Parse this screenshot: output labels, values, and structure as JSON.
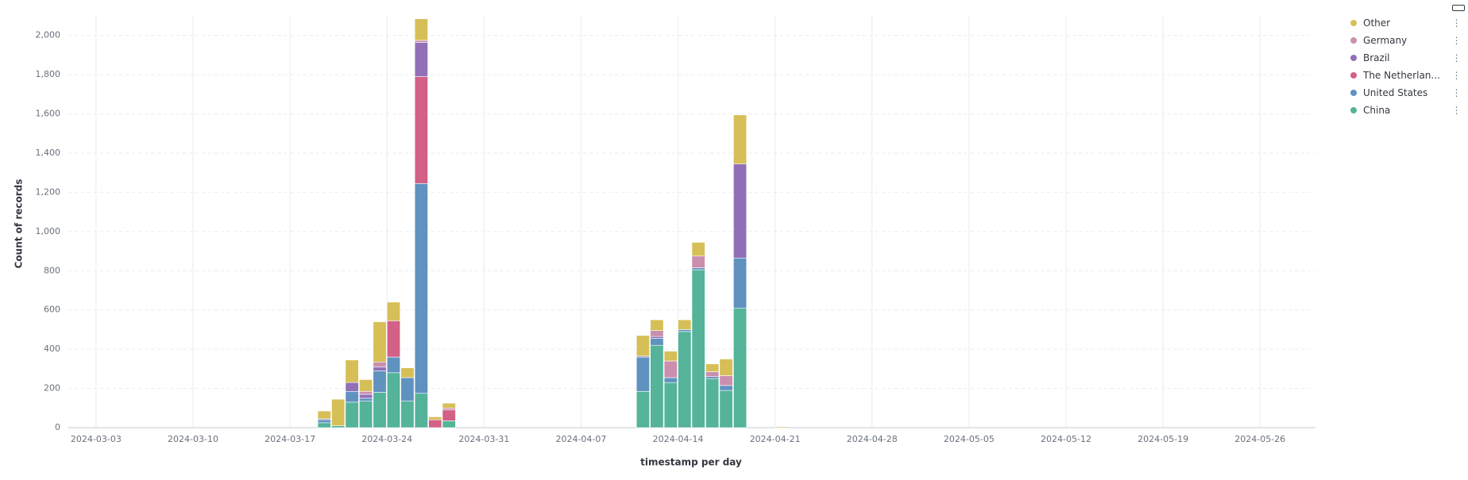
{
  "chart_data": {
    "type": "bar",
    "stacked": true,
    "x_label": "timestamp per day",
    "y_label": "Count of records",
    "x": [
      "2024-03-19",
      "2024-03-20",
      "2024-03-21",
      "2024-03-22",
      "2024-03-23",
      "2024-03-24",
      "2024-03-25",
      "2024-03-26",
      "2024-03-27",
      "2024-03-28",
      "2024-04-11",
      "2024-04-12",
      "2024-04-13",
      "2024-04-14",
      "2024-04-15",
      "2024-04-16",
      "2024-04-17",
      "2024-04-18",
      "2024-04-21"
    ],
    "series": [
      {
        "name": "China",
        "color": "#54b399",
        "values": [
          25,
          10,
          130,
          135,
          180,
          280,
          135,
          175,
          null,
          35,
          185,
          420,
          230,
          490,
          805,
          250,
          190,
          610,
          null
        ]
      },
      {
        "name": "United States",
        "color": "#6092c0",
        "values": [
          15,
          null,
          55,
          15,
          110,
          80,
          120,
          1070,
          null,
          null,
          175,
          35,
          25,
          10,
          10,
          10,
          25,
          255,
          null
        ]
      },
      {
        "name": "The Netherlan...",
        "color": "#d36086",
        "values": [
          null,
          null,
          null,
          null,
          null,
          185,
          null,
          545,
          40,
          55,
          null,
          null,
          null,
          null,
          null,
          null,
          null,
          null,
          null
        ]
      },
      {
        "name": "Brazil",
        "color": "#9170b8",
        "values": [
          5,
          null,
          45,
          20,
          20,
          null,
          null,
          175,
          null,
          null,
          5,
          10,
          null,
          null,
          null,
          null,
          null,
          480,
          null
        ]
      },
      {
        "name": "Germany",
        "color": "#ca8eae",
        "values": [
          null,
          null,
          null,
          15,
          25,
          null,
          null,
          10,
          null,
          10,
          null,
          30,
          85,
          null,
          60,
          25,
          50,
          null,
          null
        ]
      },
      {
        "name": "Other",
        "color": "#d6bf57",
        "values": [
          40,
          135,
          115,
          60,
          205,
          95,
          50,
          110,
          15,
          25,
          105,
          55,
          50,
          50,
          70,
          40,
          85,
          250,
          5
        ]
      }
    ],
    "xlim": [
      "2024-03-01",
      "2024-05-30"
    ],
    "xticks": [
      "2024-03-03",
      "2024-03-10",
      "2024-03-17",
      "2024-03-24",
      "2024-03-31",
      "2024-04-07",
      "2024-04-14",
      "2024-04-21",
      "2024-04-28",
      "2024-05-05",
      "2024-05-12",
      "2024-05-19",
      "2024-05-26"
    ],
    "ylim": [
      0,
      2100
    ],
    "yticks": [
      0,
      200,
      400,
      600,
      800,
      {
        "value": 1000,
        "label": "1,000"
      },
      {
        "value": 1200,
        "label": "1,200"
      },
      {
        "value": 1400,
        "label": "1,400"
      },
      {
        "value": 1600,
        "label": "1,600"
      },
      {
        "value": 1800,
        "label": "1,800"
      },
      {
        "value": 2000,
        "label": "2,000"
      }
    ],
    "grid": true,
    "legend": "right"
  }
}
